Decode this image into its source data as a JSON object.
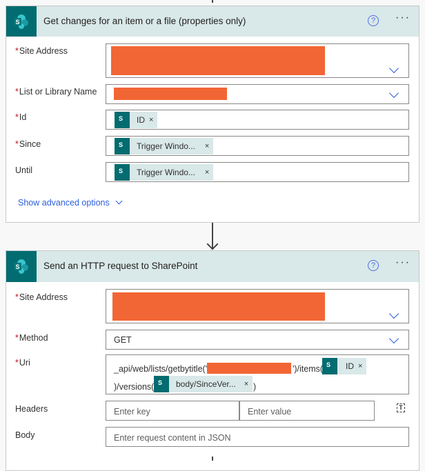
{
  "colors": {
    "accent": "#036c70",
    "header_bg": "#d9e8e8",
    "redaction": "#f26635",
    "link": "#2b5fd9"
  },
  "card1": {
    "title": "Get changes for an item or a file (properties only)",
    "fields": {
      "site_address": "Site Address",
      "list": "List or Library Name",
      "id": "Id",
      "since": "Since",
      "until": "Until"
    },
    "tokens": {
      "id": "ID",
      "since": "Trigger Windo...",
      "until": "Trigger Windo..."
    },
    "advanced": "Show advanced options"
  },
  "card2": {
    "title": "Send an HTTP request to SharePoint",
    "fields": {
      "site_address": "Site Address",
      "method": "Method",
      "uri": "Uri",
      "headers": "Headers",
      "body": "Body"
    },
    "method_value": "GET",
    "uri": {
      "part1": "_api/web/lists/getbytitle('",
      "part2": "')/items(",
      "token1": "ID",
      "part3": ")/versions(",
      "token2": "body/SinceVer...",
      "part4": ")"
    },
    "headers": {
      "key_placeholder": "Enter key",
      "value_placeholder": "Enter value"
    },
    "body_placeholder": "Enter request content in JSON"
  },
  "icons": {
    "help": "?",
    "more": "···",
    "close": "×"
  }
}
